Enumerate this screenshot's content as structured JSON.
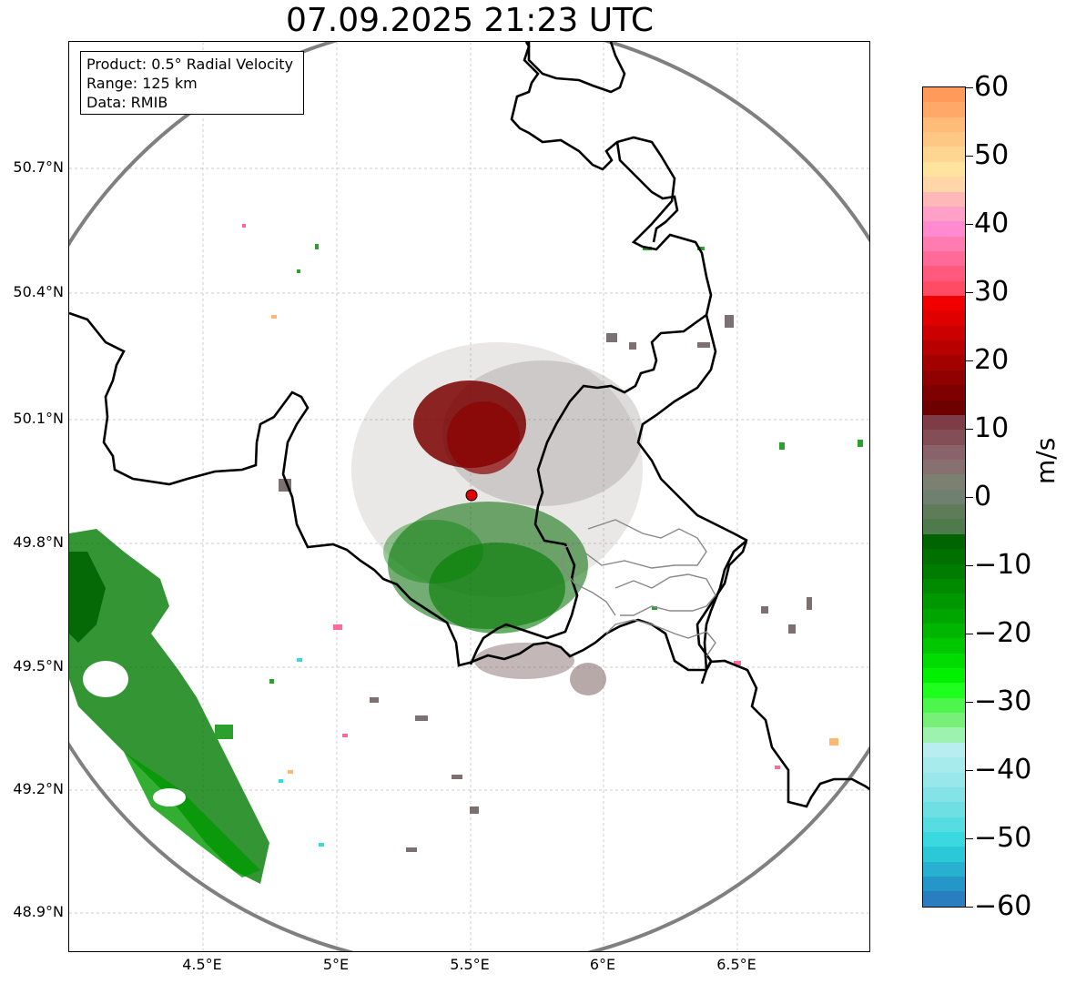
{
  "title": "07.09.2025 21:23 UTC",
  "info_box": {
    "product": "Product: 0.5° Radial Velocity",
    "range": "Range: 125 km",
    "data": "Data: RMIB"
  },
  "map": {
    "lat_labels": [
      "50.7°N",
      "50.4°N",
      "50.1°N",
      "49.8°N",
      "49.5°N",
      "49.2°N",
      "48.9°N"
    ],
    "lon_labels": [
      "4.5°E",
      "5°E",
      "5.5°E",
      "6°E",
      "6.5°E"
    ],
    "radar_site": "radar-site-marker",
    "colors": {
      "range_ring": "#808080",
      "border": "#000000",
      "admin_border": "#888888",
      "radar_marker": "#e00000",
      "grid": "#bbbbbb"
    }
  },
  "colorbar": {
    "unit": "m/s",
    "ticks": [
      "60",
      "50",
      "40",
      "30",
      "20",
      "10",
      "0",
      "−10",
      "−20",
      "−30",
      "−40",
      "−50",
      "−60"
    ],
    "range": [
      -60,
      60
    ],
    "colors_top_to_bottom": [
      "#ff9a5a",
      "#ffa868",
      "#ffbb77",
      "#ffc784",
      "#ffd592",
      "#ffe39f",
      "#ffd6a8",
      "#ffb8b8",
      "#ffa0c8",
      "#ff8ad0",
      "#ff7bb0",
      "#ff6a98",
      "#ff5a7e",
      "#ff4c64",
      "#f20000",
      "#e00000",
      "#cc0000",
      "#b80000",
      "#a30000",
      "#900000",
      "#7e0000",
      "#6e0000",
      "#7e3d46",
      "#844e57",
      "#8a626a",
      "#887070",
      "#7c8070",
      "#708070",
      "#5e7c5a",
      "#4e7a4c",
      "#006400",
      "#007000",
      "#007c00",
      "#008a00",
      "#009800",
      "#00a600",
      "#00b600",
      "#00c800",
      "#00dc00",
      "#00f000",
      "#1eff1e",
      "#4cf64c",
      "#78f078",
      "#9ef2b0",
      "#b8eef0",
      "#a8ebed",
      "#98e7ea",
      "#84e3e6",
      "#6ee0e4",
      "#56dde2",
      "#3ad9e0",
      "#2bc9d8",
      "#28b0d0",
      "#2596c8",
      "#2a7ec0"
    ]
  }
}
